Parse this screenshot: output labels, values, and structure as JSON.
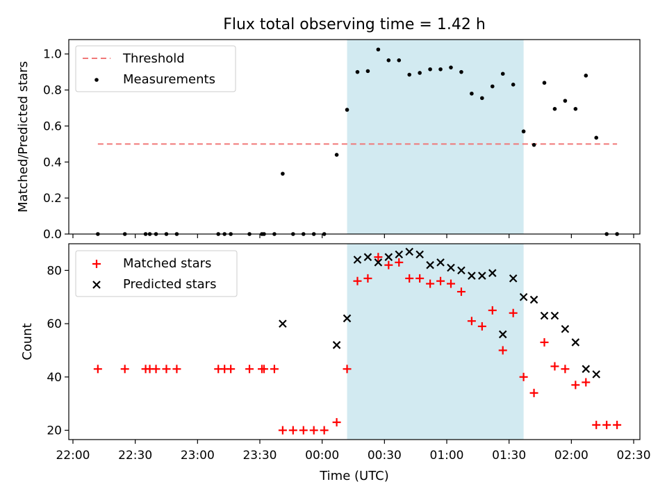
{
  "title": "Flux total observing time = 1.42 h",
  "chart_data": [
    {
      "type": "scatter",
      "panel": "top",
      "ylabel": "Matched/Predicted stars",
      "ylim": [
        0,
        1.08
      ],
      "yticks": [
        0.0,
        0.2,
        0.4,
        0.6,
        0.8,
        1.0
      ],
      "ytick_labels": [
        "0.0",
        "0.2",
        "0.4",
        "0.6",
        "0.8",
        "1.0"
      ],
      "shaded_interval": {
        "start": "00:12",
        "end": "01:37",
        "color": "#add8e6"
      },
      "legend": {
        "position": "upper-left",
        "entries": [
          "Threshold",
          "Measurements"
        ]
      },
      "series": [
        {
          "name": "Threshold",
          "kind": "dashed-line",
          "color": "#f07878",
          "x": [
            "22:12",
            "02:22"
          ],
          "y": [
            0.5,
            0.5
          ]
        },
        {
          "name": "Measurements",
          "kind": "points",
          "color": "#000000",
          "x": [
            "22:12",
            "22:25",
            "22:35",
            "22:37",
            "22:40",
            "22:45",
            "22:50",
            "23:10",
            "23:13",
            "23:16",
            "23:25",
            "23:31",
            "23:32",
            "23:37",
            "23:41",
            "23:46",
            "23:51",
            "23:56",
            "00:01",
            "00:07",
            "00:12",
            "00:17",
            "00:22",
            "00:27",
            "00:32",
            "00:37",
            "00:42",
            "00:47",
            "00:52",
            "00:57",
            "01:02",
            "01:07",
            "01:12",
            "01:17",
            "01:22",
            "01:27",
            "01:32",
            "01:37",
            "01:42",
            "01:47",
            "01:52",
            "01:57",
            "02:02",
            "02:07",
            "02:12",
            "02:17",
            "02:22"
          ],
          "y": [
            0,
            0,
            0,
            0,
            0,
            0,
            0,
            0,
            0,
            0,
            0,
            0,
            0,
            0,
            0.335,
            0,
            0,
            0,
            0,
            0.44,
            0.69,
            0.9,
            0.905,
            1.025,
            0.965,
            0.965,
            0.885,
            0.895,
            0.915,
            0.915,
            0.925,
            0.9,
            0.78,
            0.755,
            0.82,
            0.89,
            0.83,
            0.57,
            0.495,
            0.84,
            0.695,
            0.74,
            0.695,
            0.88,
            0.535,
            0,
            0
          ]
        }
      ]
    },
    {
      "type": "scatter",
      "panel": "bottom",
      "ylabel": "Count",
      "xlabel": "Time (UTC)",
      "ylim": [
        16.5,
        90
      ],
      "yticks": [
        20,
        40,
        60,
        80
      ],
      "ytick_labels": [
        "20",
        "40",
        "60",
        "80"
      ],
      "xlim": [
        "21:58",
        "02:33"
      ],
      "xticks": [
        "22:00",
        "22:30",
        "23:00",
        "23:30",
        "00:00",
        "00:30",
        "01:00",
        "01:30",
        "02:00",
        "02:30"
      ],
      "shaded_interval": {
        "start": "00:12",
        "end": "01:37",
        "color": "#add8e6"
      },
      "legend": {
        "position": "upper-left",
        "entries": [
          "Matched stars",
          "Predicted stars"
        ]
      },
      "series": [
        {
          "name": "Matched stars",
          "marker": "+",
          "color": "#ff0000",
          "x": [
            "22:12",
            "22:25",
            "22:35",
            "22:37",
            "22:40",
            "22:45",
            "22:50",
            "23:10",
            "23:13",
            "23:16",
            "23:25",
            "23:31",
            "23:32",
            "23:37",
            "23:41",
            "23:46",
            "23:51",
            "23:56",
            "00:01",
            "00:07",
            "00:12",
            "00:17",
            "00:22",
            "00:27",
            "00:32",
            "00:37",
            "00:42",
            "00:47",
            "00:52",
            "00:57",
            "01:02",
            "01:07",
            "01:12",
            "01:17",
            "01:22",
            "01:27",
            "01:32",
            "01:37",
            "01:42",
            "01:47",
            "01:52",
            "01:57",
            "02:02",
            "02:07",
            "02:12",
            "02:17",
            "02:22"
          ],
          "y": [
            43,
            43,
            43,
            43,
            43,
            43,
            43,
            43,
            43,
            43,
            43,
            43,
            43,
            43,
            20,
            20,
            20,
            20,
            20,
            23,
            43,
            76,
            77,
            85,
            82,
            83,
            77,
            77,
            75,
            76,
            75,
            72,
            61,
            59,
            65,
            50,
            64,
            40,
            34,
            53,
            44,
            43,
            37,
            38,
            22,
            22,
            22
          ]
        },
        {
          "name": "Predicted stars",
          "marker": "x",
          "color": "#000000",
          "x": [
            "23:41",
            "00:07",
            "00:12",
            "00:17",
            "00:22",
            "00:27",
            "00:32",
            "00:37",
            "00:42",
            "00:47",
            "00:52",
            "00:57",
            "01:02",
            "01:07",
            "01:12",
            "01:17",
            "01:22",
            "01:27",
            "01:32",
            "01:37",
            "01:42",
            "01:47",
            "01:52",
            "01:57",
            "02:02",
            "02:07",
            "02:12"
          ],
          "y": [
            60,
            52,
            62,
            84,
            85,
            83,
            85,
            86,
            87,
            86,
            82,
            83,
            81,
            80,
            78,
            78,
            79,
            56,
            77,
            70,
            69,
            63,
            63,
            58,
            53,
            43,
            41
          ]
        }
      ]
    }
  ]
}
